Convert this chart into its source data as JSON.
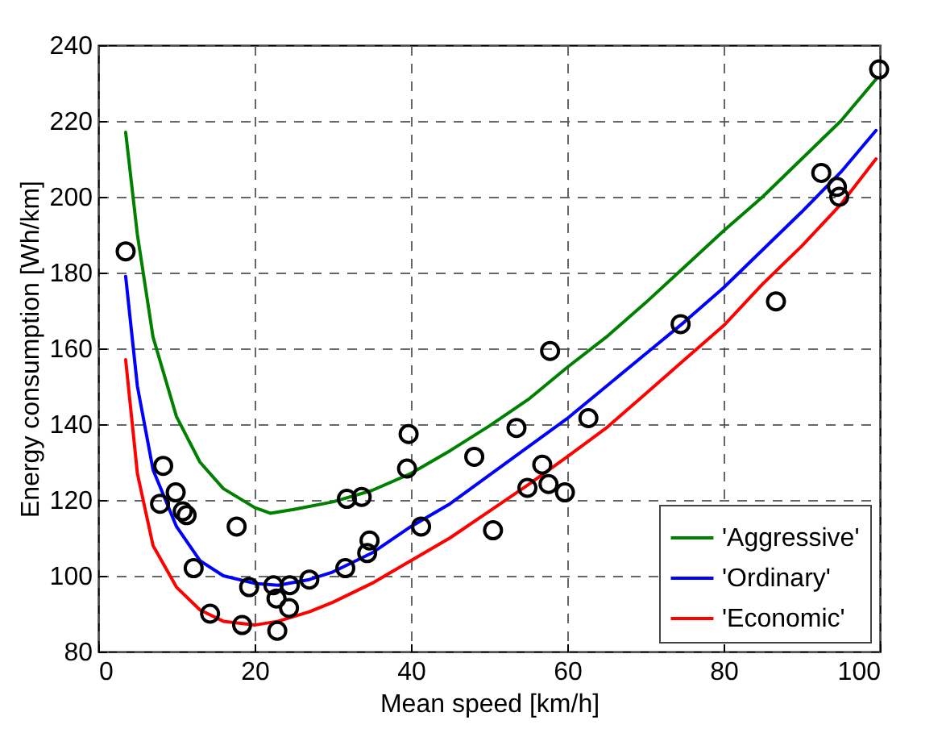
{
  "chart_data": {
    "type": "line",
    "xlabel": "Mean speed [km/h]",
    "ylabel": "Energy consumption [Wh/km]",
    "xlim": [
      0,
      100
    ],
    "xticks": [
      0,
      20,
      40,
      60,
      80,
      100
    ],
    "ylim": [
      80,
      240
    ],
    "yticks": [
      80,
      100,
      120,
      140,
      160,
      180,
      200,
      220,
      240
    ],
    "grid": true,
    "legend": "bottom right",
    "line_style": "solid",
    "series": [
      {
        "type": "scatter",
        "marker": "circle",
        "color": "#000000",
        "x": [
          3.5,
          7.9,
          8.3,
          9.9,
          10.8,
          11.3,
          12.2,
          14.3,
          17.7,
          18.4,
          19.3,
          22.4,
          22.8,
          22.9,
          24.4,
          24.5,
          27.0,
          31.6,
          31.8,
          33.7,
          34.4,
          34.7,
          39.5,
          39.7,
          41.3,
          48.1,
          50.5,
          53.5,
          54.9,
          56.8,
          57.6,
          57.8,
          59.7,
          62.7,
          74.5,
          86.7,
          92.5,
          94.5,
          94.8,
          99.9
        ],
        "values": [
          185.6,
          119,
          129,
          122,
          117,
          116,
          102,
          90,
          113,
          87,
          97,
          97.5,
          94,
          85.5,
          91.5,
          97.5,
          99,
          102,
          120.3,
          120.8,
          106,
          109.3,
          128.3,
          137.4,
          113,
          131.4,
          112,
          139,
          123.2,
          129.3,
          124.2,
          159.3,
          122,
          141.6,
          166.4,
          172.4,
          206.3,
          202.6,
          200,
          233.6
        ]
      },
      {
        "name": "'Aggressive'",
        "color": "#008000",
        "x": [
          3.5,
          5,
          7,
          10,
          13,
          16,
          20,
          22,
          25,
          30,
          35,
          40,
          45,
          50,
          55,
          60,
          65,
          70,
          75,
          80,
          85,
          90,
          95,
          99.5
        ],
        "values": [
          217,
          190,
          163,
          142,
          130,
          123,
          118,
          116.5,
          117.5,
          119.5,
          122.5,
          127,
          133,
          139.5,
          146.5,
          155,
          163,
          172,
          181.5,
          191,
          200,
          210,
          220,
          231
        ]
      },
      {
        "name": "'Ordinary'",
        "color": "#0000ff",
        "x": [
          3.5,
          5,
          7,
          10,
          13,
          16,
          20,
          23,
          27,
          30,
          35,
          40,
          45,
          50,
          55,
          60,
          65,
          70,
          75,
          80,
          85,
          90,
          95,
          99.5
        ],
        "values": [
          179,
          150,
          128,
          113,
          104,
          100,
          98,
          97.5,
          99,
          101,
          106,
          113,
          119,
          126.5,
          134,
          141.5,
          150,
          158.5,
          167,
          176,
          186,
          196,
          206.5,
          217.5
        ]
      },
      {
        "name": "'Economic'",
        "color": "#ff0000",
        "x": [
          3.5,
          5,
          7,
          10,
          13,
          16,
          20,
          23,
          27,
          30,
          35,
          40,
          45,
          50,
          55,
          60,
          65,
          70,
          75,
          80,
          85,
          90,
          95,
          99.5
        ],
        "values": [
          157,
          127,
          108,
          97,
          91,
          88,
          87,
          88,
          90.5,
          93,
          98,
          104,
          110,
          117,
          124,
          131.4,
          139,
          148,
          157,
          166,
          177,
          187,
          198,
          210
        ]
      }
    ]
  }
}
